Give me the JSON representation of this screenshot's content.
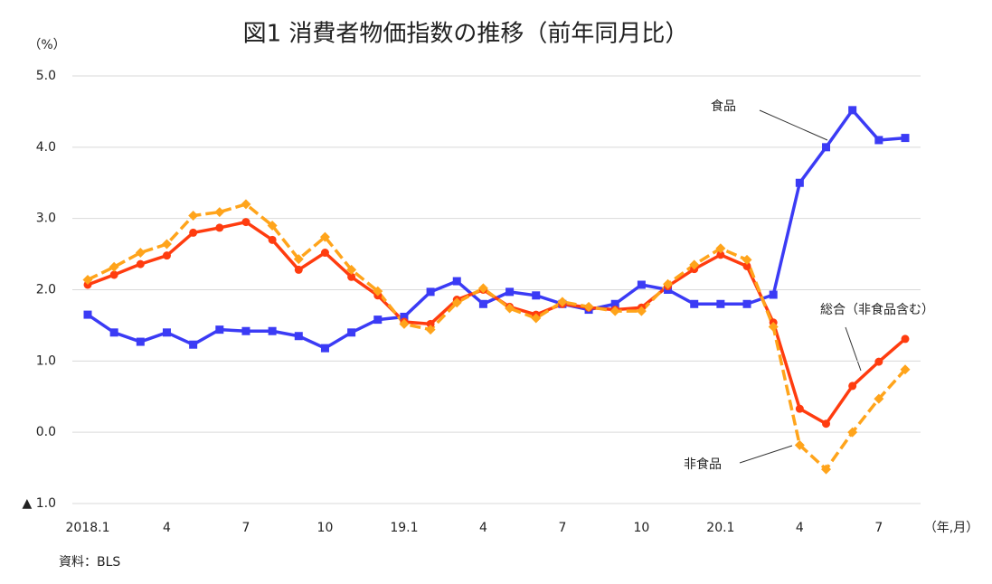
{
  "chart_data": {
    "type": "line",
    "title": "図1 消費者物価指数の推移（前年同月比）",
    "y_unit": "（%）",
    "x_unit": "（年,月）",
    "source": "資料：BLS",
    "categories": [
      "2018.1",
      null,
      null,
      "4",
      null,
      null,
      "7",
      null,
      null,
      "10",
      null,
      null,
      "19.1",
      null,
      null,
      "4",
      null,
      null,
      "7",
      null,
      null,
      "10",
      null,
      null,
      "20.1",
      null,
      null,
      "4",
      null,
      null,
      "7",
      null
    ],
    "series": [
      {
        "name": "食品",
        "color": "#3b3bf5",
        "marker": "square",
        "dash": false,
        "values": [
          1.65,
          1.4,
          1.27,
          1.4,
          1.23,
          1.44,
          1.42,
          1.42,
          1.35,
          1.18,
          1.4,
          1.58,
          1.62,
          1.97,
          2.12,
          1.8,
          1.97,
          1.92,
          1.8,
          1.72,
          1.8,
          2.07,
          2.0,
          1.8,
          1.8,
          1.8,
          1.93,
          3.5,
          4.0,
          4.52,
          4.1,
          4.13
        ]
      },
      {
        "name": "総合（非食品含む）",
        "color": "#ff3c0f",
        "marker": "circle",
        "dash": false,
        "values": [
          2.07,
          2.21,
          2.36,
          2.48,
          2.8,
          2.87,
          2.95,
          2.7,
          2.28,
          2.52,
          2.18,
          1.92,
          1.55,
          1.52,
          1.86,
          2.0,
          1.76,
          1.65,
          1.8,
          1.75,
          1.72,
          1.75,
          2.05,
          2.29,
          2.49,
          2.33,
          1.54,
          0.33,
          0.12,
          0.65,
          0.99,
          1.31
        ]
      },
      {
        "name": "非食品",
        "color": "#ffa41b",
        "marker": "diamond",
        "dash": true,
        "values": [
          2.14,
          2.32,
          2.52,
          2.64,
          3.04,
          3.09,
          3.2,
          2.9,
          2.43,
          2.74,
          2.28,
          1.98,
          1.52,
          1.44,
          1.82,
          2.02,
          1.74,
          1.6,
          1.83,
          1.76,
          1.7,
          1.7,
          2.08,
          2.35,
          2.58,
          2.42,
          1.48,
          -0.18,
          -0.52,
          0.0,
          0.47,
          0.88
        ]
      }
    ],
    "ylim": [
      -1,
      5
    ],
    "yticks": [
      {
        "value": -1,
        "label": "▲ 1.0"
      },
      {
        "value": 0,
        "label": "0.0"
      },
      {
        "value": 1,
        "label": "1.0"
      },
      {
        "value": 2,
        "label": "2.0"
      },
      {
        "value": 3,
        "label": "3.0"
      },
      {
        "value": 4,
        "label": "4.0"
      },
      {
        "value": 5,
        "label": "5.0"
      }
    ],
    "grid": true
  }
}
